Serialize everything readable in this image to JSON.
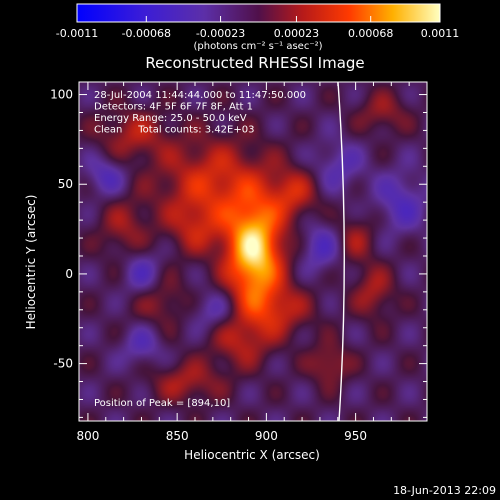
{
  "chart_data": {
    "type": "heatmap",
    "title": "Reconstructed RHESSI Image",
    "xlabel": "Heliocentric X (arcsec)",
    "ylabel": "Heliocentric Y (arcsec)",
    "xlim": [
      795,
      990
    ],
    "ylim": [
      -82,
      107
    ],
    "x_ticks": [
      800,
      850,
      900,
      950
    ],
    "y_ticks": [
      -50,
      0,
      50,
      100
    ],
    "colorbar": {
      "range": [
        -0.0011,
        0.0011
      ],
      "tick_values": [
        -0.0011,
        -0.00068,
        -0.00023,
        0.00023,
        0.00068,
        0.0011
      ],
      "tick_labels": [
        "-0.0011",
        "-0.00068",
        "-0.00023",
        "0.00023",
        "0.00068",
        "0.0011"
      ],
      "units": "(photons cm⁻² s⁻¹ asec⁻²)"
    },
    "annotations": [
      "28-Jul-2004 11:44:44.000 to 11:47:50.000",
      "Detectors: 4F 5F 6F 7F 8F, Att 1",
      "Energy Range: 25.0 - 50.0 keV",
      "Clean     Total counts: 3.42E+03"
    ],
    "peak_label": "Position of Peak = [894,10]",
    "peak": {
      "x": 894,
      "y": 10,
      "value": 0.0011
    },
    "limb": "solar limb arc",
    "sources": [
      {
        "x": 893,
        "y": 12,
        "sx": 11,
        "sy": 20,
        "amp": 1.0
      },
      {
        "x": 870,
        "y": 50,
        "sx": 22,
        "sy": 18,
        "amp": 0.45
      },
      {
        "x": 915,
        "y": 45,
        "sx": 10,
        "sy": 10,
        "amp": 0.35
      },
      {
        "x": 860,
        "y": 25,
        "sx": 10,
        "sy": 10,
        "amp": 0.25
      },
      {
        "x": 905,
        "y": -20,
        "sx": 14,
        "sy": 10,
        "amp": 0.35
      },
      {
        "x": 885,
        "y": -38,
        "sx": 12,
        "sy": 10,
        "amp": 0.3
      },
      {
        "x": 855,
        "y": -60,
        "sx": 14,
        "sy": 8,
        "amp": 0.3
      },
      {
        "x": 825,
        "y": 78,
        "sx": 14,
        "sy": 10,
        "amp": 0.3
      },
      {
        "x": 820,
        "y": 25,
        "sx": 10,
        "sy": 12,
        "amp": 0.25
      },
      {
        "x": 950,
        "y": 20,
        "sx": 8,
        "sy": 10,
        "amp": 0.25
      },
      {
        "x": 960,
        "y": -10,
        "sx": 8,
        "sy": 10,
        "amp": 0.3
      },
      {
        "x": 965,
        "y": 90,
        "sx": 10,
        "sy": 8,
        "amp": 0.25
      },
      {
        "x": 935,
        "y": -50,
        "sx": 8,
        "sy": 8,
        "amp": 0.3
      },
      {
        "x": 840,
        "y": -15,
        "sx": 12,
        "sy": 10,
        "amp": 0.25
      },
      {
        "x": 830,
        "y": -40,
        "sx": 8,
        "sy": 8,
        "amp": -0.25
      },
      {
        "x": 940,
        "y": 60,
        "sx": 10,
        "sy": 10,
        "amp": -0.25
      },
      {
        "x": 930,
        "y": 15,
        "sx": 8,
        "sy": 10,
        "amp": -0.3
      },
      {
        "x": 975,
        "y": 40,
        "sx": 10,
        "sy": 12,
        "amp": -0.3
      },
      {
        "x": 870,
        "y": -20,
        "sx": 10,
        "sy": 8,
        "amp": -0.25
      },
      {
        "x": 810,
        "y": 55,
        "sx": 8,
        "sy": 8,
        "amp": -0.3
      },
      {
        "x": 830,
        "y": 0,
        "sx": 8,
        "sy": 10,
        "amp": -0.3
      }
    ]
  },
  "footer": {
    "timestamp": "18-Jun-2013 22:09"
  }
}
